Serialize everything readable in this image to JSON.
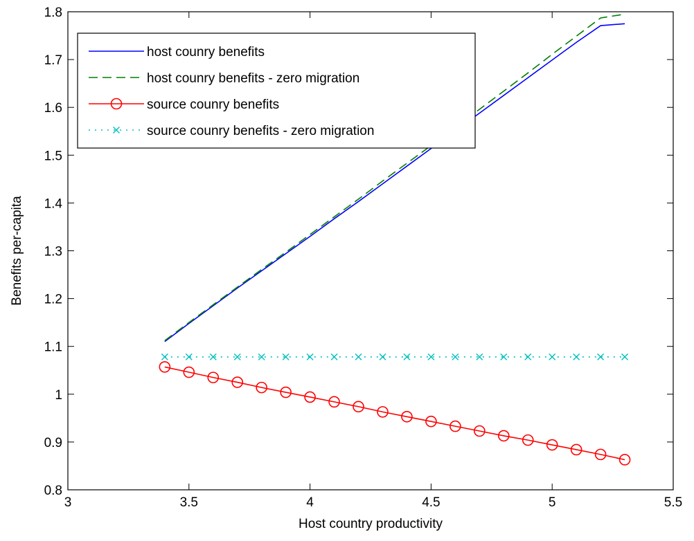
{
  "chart_data": {
    "type": "line",
    "xlabel": "Host country productivity",
    "ylabel": "Benefits per-capita",
    "xlim": [
      3,
      5.5
    ],
    "ylim": [
      0.8,
      1.8
    ],
    "xticks": [
      3,
      3.5,
      4,
      4.5,
      5,
      5.5
    ],
    "xtick_labels": [
      "3",
      "3.5",
      "4",
      "4.5",
      "5",
      "5.5"
    ],
    "yticks": [
      0.8,
      0.9,
      1.0,
      1.1,
      1.2,
      1.3,
      1.4,
      1.5,
      1.6,
      1.7,
      1.8
    ],
    "ytick_labels": [
      "0.8",
      "0.9",
      "1",
      "1.1",
      "1.2",
      "1.3",
      "1.4",
      "1.5",
      "1.6",
      "1.7",
      "1.8"
    ],
    "grid": false,
    "legend_position": "top-left",
    "x": [
      3.4,
      3.5,
      3.6,
      3.7,
      3.8,
      3.9,
      4.0,
      4.1,
      4.2,
      4.3,
      4.4,
      4.5,
      4.6,
      4.7,
      4.8,
      4.9,
      5.0,
      5.1,
      5.2,
      5.3
    ],
    "series": [
      {
        "name": "host counry benefits",
        "color": "#0000ff",
        "style": "solid",
        "marker": "none",
        "values": [
          1.11,
          1.148,
          1.185,
          1.222,
          1.258,
          1.294,
          1.33,
          1.367,
          1.403,
          1.44,
          1.477,
          1.514,
          1.551,
          1.588,
          1.625,
          1.662,
          1.699,
          1.736,
          1.771,
          1.775
        ]
      },
      {
        "name": "host counry benefits - zero migration",
        "color": "#007f00",
        "style": "dashed",
        "marker": "none",
        "values": [
          1.112,
          1.15,
          1.187,
          1.224,
          1.261,
          1.297,
          1.334,
          1.371,
          1.408,
          1.446,
          1.483,
          1.52,
          1.558,
          1.596,
          1.634,
          1.672,
          1.711,
          1.749,
          1.787,
          1.795
        ]
      },
      {
        "name": "source counry benefits",
        "color": "#ff0000",
        "style": "solid",
        "marker": "circle",
        "values": [
          1.057,
          1.046,
          1.035,
          1.025,
          1.014,
          1.004,
          0.994,
          0.984,
          0.974,
          0.963,
          0.953,
          0.943,
          0.933,
          0.923,
          0.913,
          0.904,
          0.894,
          0.884,
          0.874,
          0.863
        ]
      },
      {
        "name": "source counry benefits - zero migration",
        "color": "#00bfbf",
        "style": "dotted",
        "marker": "x",
        "values": [
          1.078,
          1.078,
          1.078,
          1.078,
          1.078,
          1.078,
          1.078,
          1.078,
          1.078,
          1.078,
          1.078,
          1.078,
          1.078,
          1.078,
          1.078,
          1.078,
          1.078,
          1.078,
          1.078,
          1.078
        ]
      }
    ]
  }
}
